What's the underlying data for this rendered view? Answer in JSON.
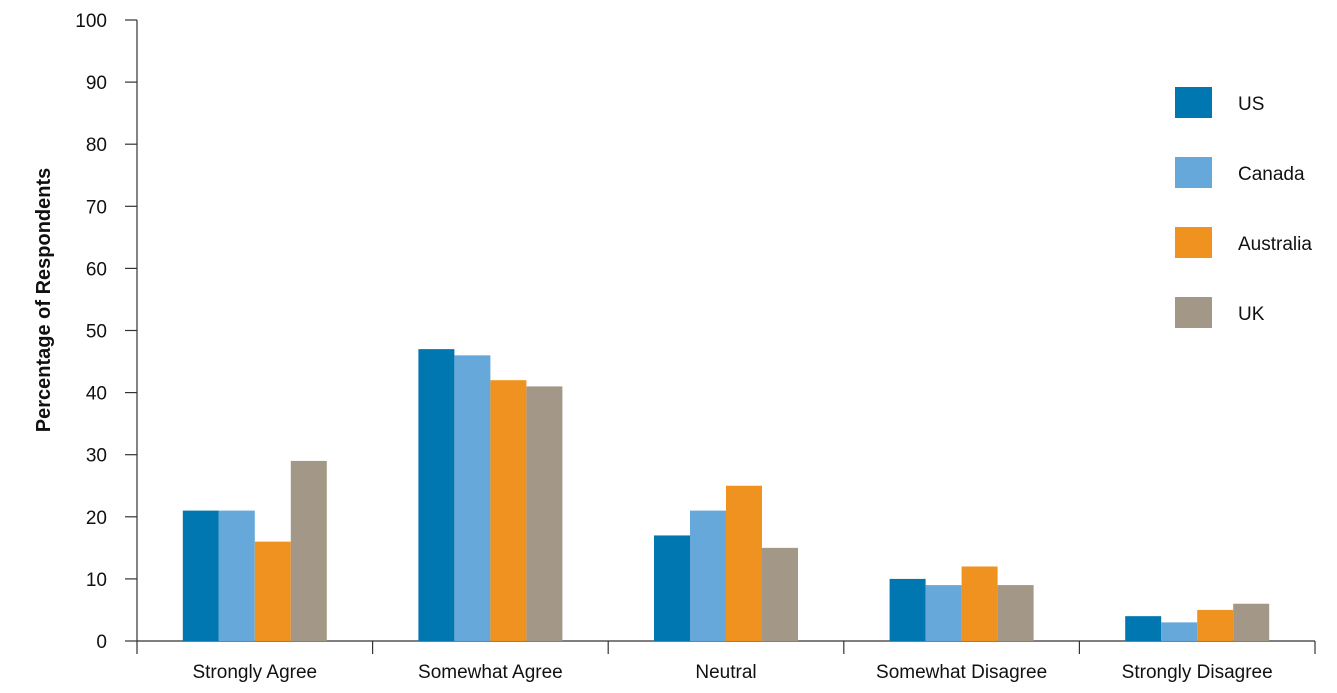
{
  "chart_data": {
    "type": "bar",
    "title": "",
    "xlabel": "",
    "ylabel": "Percentage of Respondents",
    "ylim": [
      0,
      100
    ],
    "yticks": [
      0,
      10,
      20,
      30,
      40,
      50,
      60,
      70,
      80,
      90,
      100
    ],
    "categories": [
      "Strongly Agree",
      "Somewhat Agree",
      "Neutral",
      "Somewhat Disagree",
      "Strongly Disagree"
    ],
    "series": [
      {
        "name": "US",
        "color": "#0077b0",
        "values": [
          21,
          47,
          17,
          10,
          4
        ]
      },
      {
        "name": "Canada",
        "color": "#66a8d9",
        "values": [
          21,
          46,
          21,
          9,
          3
        ]
      },
      {
        "name": "Australia",
        "color": "#f0921f",
        "values": [
          16,
          42,
          25,
          12,
          5
        ]
      },
      {
        "name": "UK",
        "color": "#a39787",
        "values": [
          29,
          41,
          15,
          9,
          6
        ]
      }
    ],
    "grid": false,
    "legend_position": "right"
  }
}
